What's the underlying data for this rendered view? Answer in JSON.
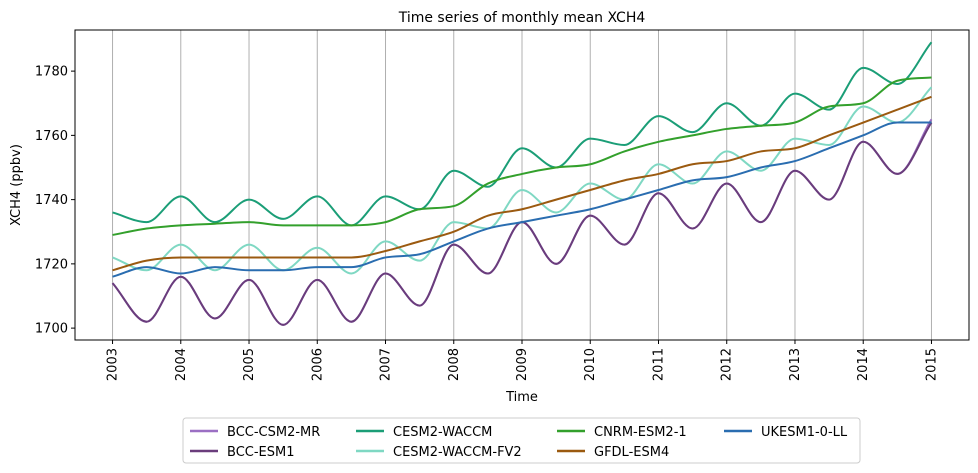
{
  "chart_data": {
    "type": "line",
    "title": "Time series of monthly mean XCH4",
    "xlabel": "Time",
    "ylabel": "XCH4 (ppbv)",
    "xlim": [
      2002.45,
      2015.55
    ],
    "ylim": [
      1696.3,
      1792.8
    ],
    "x_ticks": [
      2003,
      2004,
      2005,
      2006,
      2007,
      2008,
      2009,
      2010,
      2011,
      2012,
      2013,
      2014,
      2015
    ],
    "x_tick_labels": [
      "2003",
      "2004",
      "2005",
      "2006",
      "2007",
      "2008",
      "2009",
      "2010",
      "2011",
      "2012",
      "2013",
      "2014",
      "2015"
    ],
    "y_ticks": [
      1700,
      1720,
      1740,
      1760,
      1780
    ],
    "y_tick_labels": [
      "1700",
      "1720",
      "1740",
      "1760",
      "1780"
    ],
    "grid": "vertical lines at x ticks",
    "legend_position": "below plot, 4 columns",
    "x_years": [
      2003.0,
      2003.5,
      2004.0,
      2004.5,
      2005.0,
      2005.5,
      2006.0,
      2006.5,
      2007.0,
      2007.5,
      2008.0,
      2008.5,
      2009.0,
      2009.5,
      2010.0,
      2010.5,
      2011.0,
      2011.5,
      2012.0,
      2012.5,
      2013.0,
      2013.5,
      2014.0,
      2014.5,
      2015.0
    ],
    "series": [
      {
        "name": "BCC-CSM2-MR",
        "color": "#9b6fc3",
        "values": [
          1714,
          1702,
          1716,
          1703,
          1715,
          1701,
          1715,
          1702,
          1717,
          1707,
          1726,
          1717,
          1733,
          1720,
          1735,
          1726,
          1742,
          1731,
          1745,
          1733,
          1749,
          1740,
          1758,
          1748,
          1765
        ]
      },
      {
        "name": "BCC-ESM1",
        "color": "#6a3d7c",
        "values": [
          1714,
          1702,
          1716,
          1703,
          1715,
          1701,
          1715,
          1702,
          1717,
          1707,
          1726,
          1717,
          1733,
          1720,
          1735,
          1726,
          1742,
          1731,
          1745,
          1733,
          1749,
          1740,
          1758,
          1748,
          1764
        ]
      },
      {
        "name": "CESM2-WACCM",
        "color": "#1b9e77",
        "values": [
          1736,
          1733,
          1741,
          1733,
          1740,
          1734,
          1741,
          1732,
          1741,
          1737,
          1749,
          1744,
          1756,
          1750,
          1759,
          1757,
          1766,
          1761,
          1770,
          1763,
          1773,
          1768,
          1781,
          1776,
          1789
        ]
      },
      {
        "name": "CESM2-WACCM-FV2",
        "color": "#7fd8c3",
        "values": [
          1722,
          1718,
          1726,
          1718,
          1726,
          1718,
          1725,
          1717,
          1727,
          1721,
          1733,
          1731,
          1743,
          1736,
          1745,
          1740,
          1751,
          1745,
          1755,
          1749,
          1759,
          1757,
          1769,
          1764,
          1775
        ]
      },
      {
        "name": "CNRM-ESM2-1",
        "color": "#33a02c",
        "values": [
          1729,
          1731,
          1732,
          1732.5,
          1733,
          1732,
          1732,
          1732,
          1733,
          1737,
          1738,
          1745,
          1748,
          1750,
          1751,
          1755,
          1758,
          1760,
          1762,
          1763,
          1764,
          1769,
          1770,
          1777,
          1778
        ]
      },
      {
        "name": "GFDL-ESM4",
        "color": "#9b5a10",
        "values": [
          1718,
          1721,
          1722,
          1722,
          1722,
          1722,
          1722,
          1722,
          1724,
          1727,
          1730,
          1735,
          1737,
          1740,
          1743,
          1746,
          1748,
          1751,
          1752,
          1755,
          1756,
          1760,
          1764,
          1768,
          1772
        ]
      },
      {
        "name": "UKESM1-0-LL",
        "color": "#2a6db0",
        "values": [
          1716,
          1719,
          1717,
          1719,
          1718,
          1718,
          1719,
          1719,
          1722,
          1723,
          1727,
          1731,
          1733,
          1735,
          1737,
          1740,
          1743,
          1746,
          1747,
          1750,
          1752,
          1756,
          1760,
          1764,
          1764
        ]
      }
    ]
  }
}
